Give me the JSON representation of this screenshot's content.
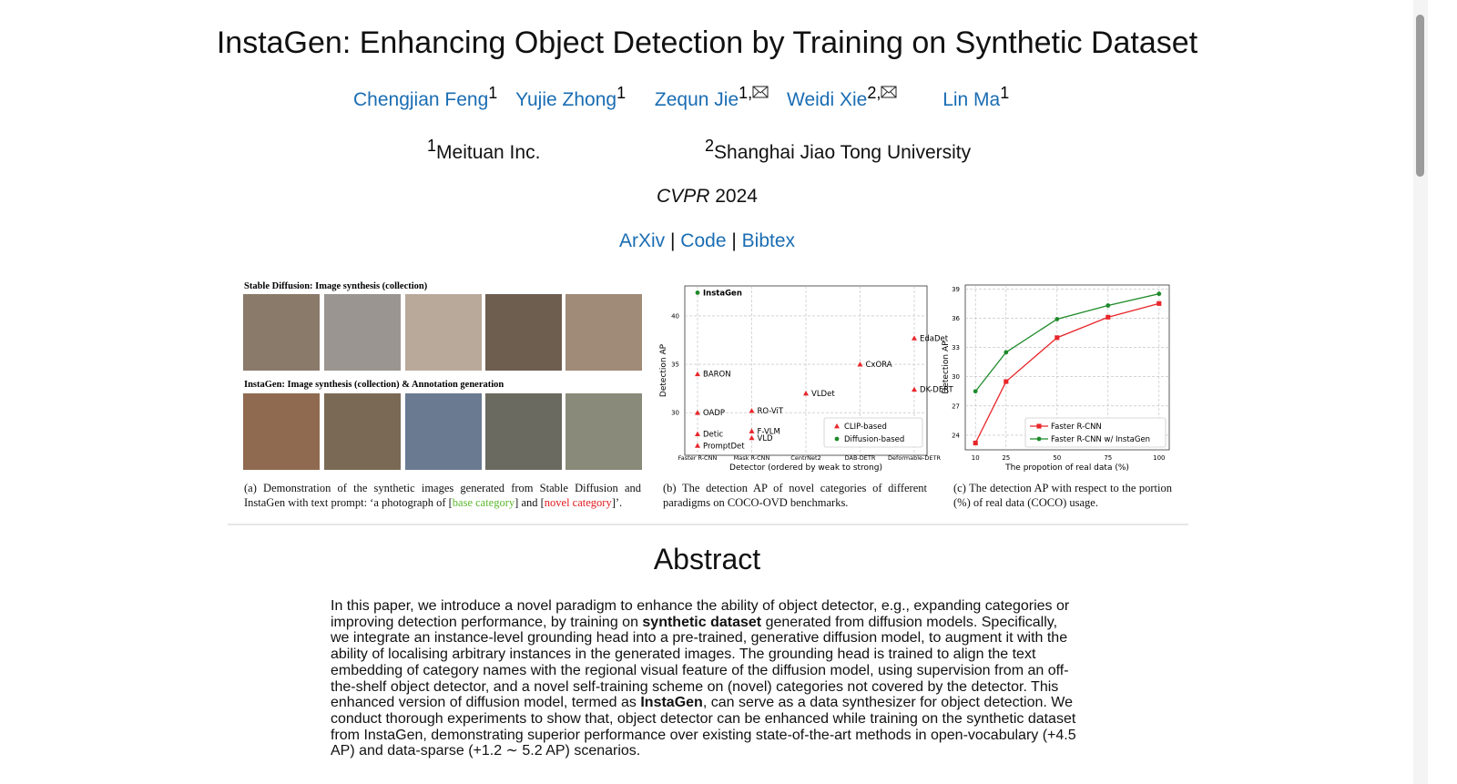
{
  "header": {
    "title": "InstaGen: Enhancing Object Detection by Training on Synthetic Dataset",
    "authors": [
      {
        "name": "Chengjian Feng",
        "mark": "1"
      },
      {
        "name": "Yujie Zhong",
        "mark": "1"
      },
      {
        "name": "Zequn Jie",
        "mark": "1,"
      },
      {
        "name": "Weidi Xie",
        "mark": "2,"
      },
      {
        "name": "Lin Ma",
        "mark": "1"
      }
    ],
    "affiliations": [
      {
        "index": "1",
        "name": "Meituan Inc."
      },
      {
        "index": "2",
        "name": "Shanghai Jiao Tong University"
      }
    ],
    "venue": "CVPR",
    "year": "2024",
    "links": [
      "ArXiv",
      "Code",
      "Bibtex"
    ],
    "separator": "|"
  },
  "figure_a": {
    "heading_1": "Stable Diffusion: Image synthesis (collection)",
    "heading_2": "InstaGen: Image synthesis (collection) & Annotation generation",
    "caption": [
      {
        "text": "(a) Demonstration of the synthetic images generated from Stable Diffusion and InstaGen with text prompt: ‘a photograph of ["
      },
      {
        "text": "base category",
        "color": "#5cb82e"
      },
      {
        "text": "] and ["
      },
      {
        "text": "novel category",
        "color": "#e0191e"
      },
      {
        "text": "]’."
      }
    ]
  },
  "chart_data": [
    {
      "type": "scatter",
      "caption": "(b) The detection AP of novel categories of different paradigms on COCO-OVD benchmarks.",
      "x_label": "Detector (ordered by weak to strong)",
      "y_label": "Detection AP",
      "categories": [
        "Faster R-CNN",
        "Mask R-CNN",
        "CentrNet2",
        "DAB-DETR",
        "Deformable-DETR"
      ],
      "ylim": [
        25.6,
        43.1
      ],
      "yticks": [
        30,
        35,
        40
      ],
      "grid": true,
      "legend": "lower right",
      "series": [
        {
          "name": "CLIP-based",
          "color": "#e8262a",
          "marker": "triangle",
          "points": [
            {
              "label": "BARON",
              "x": "Faster R-CNN",
              "y": 34.0
            },
            {
              "label": "OADP",
              "x": "Faster R-CNN",
              "y": 30.0
            },
            {
              "label": "Detic",
              "x": "Faster R-CNN",
              "y": 27.8
            },
            {
              "label": "PromptDet",
              "x": "Faster R-CNN",
              "y": 26.6
            },
            {
              "label": "RO-ViT",
              "x": "Mask R-CNN",
              "y": 30.2
            },
            {
              "label": "F-VLM",
              "x": "Mask R-CNN",
              "y": 28.1
            },
            {
              "label": "VLD",
              "x": "Mask R-CNN",
              "y": 27.4
            },
            {
              "label": "VLDet",
              "x": "CentrNet2",
              "y": 32.0
            },
            {
              "label": "CxORA",
              "x": "DAB-DETR",
              "y": 35.0
            },
            {
              "label": "EdaDet",
              "x": "Deformable-DETR",
              "y": 37.7
            },
            {
              "label": "DK-DERT",
              "x": "Deformable-DETR",
              "y": 32.4
            }
          ]
        },
        {
          "name": "Diffusion-based",
          "color": "#1e8a2a",
          "marker": "circle",
          "points": [
            {
              "label": "InstaGen",
              "x": "Faster R-CNN",
              "y": 42.4
            }
          ]
        }
      ]
    },
    {
      "type": "line",
      "caption": "(c) The detection AP with respect to the portion (%) of real data (COCO) usage.",
      "x_label": "The propotion of real data (%)",
      "y_label": "Detection AP",
      "x": [
        10,
        25,
        50,
        75,
        100
      ],
      "xlim": [
        5,
        105
      ],
      "xticks": [
        10,
        25,
        50,
        75,
        100
      ],
      "ylim": [
        22.5,
        39.4
      ],
      "yticks": [
        24,
        27,
        30,
        33,
        36,
        39
      ],
      "grid": true,
      "legend": "lower right",
      "series": [
        {
          "name": "Faster R-CNN",
          "color": "#e8262a",
          "marker": "square",
          "values": [
            23.2,
            29.5,
            34.0,
            36.1,
            37.5
          ]
        },
        {
          "name": "Faster R-CNN w/ InstaGen",
          "color": "#1e8a2a",
          "marker": "circle",
          "values": [
            28.5,
            32.5,
            35.9,
            37.3,
            38.5
          ]
        }
      ]
    }
  ],
  "abstract": {
    "heading": "Abstract",
    "segments": [
      {
        "text": "In this paper, we introduce a novel paradigm to enhance the ability of object detector, e.g., expanding categories or improving detection performance, by training on "
      },
      {
        "text": "synthetic dataset",
        "bold": true
      },
      {
        "text": " generated from diffusion models. Specifically, we integrate an instance-level grounding head into a pre-trained, generative diffusion model, to augment it with the ability of localising arbitrary instances in the generated images. The grounding head is trained to align the text embedding of category names with the regional visual feature of the diffusion model, using supervision from an off-the-shelf object detector, and a novel self-training scheme on (novel) categories not covered by the detector. This enhanced version of diffusion model, termed as "
      },
      {
        "text": "InstaGen",
        "bold": true
      },
      {
        "text": ", can serve as a data synthesizer for object detection. We conduct thorough experiments to show that, object detector can be enhanced while training on the synthetic dataset from InstaGen, demonstrating superior performance over existing state-of-the-art methods in open-vocabulary (+4.5 AP) and data-sparse (+1.2 ∼ 5.2 AP) scenarios."
      }
    ]
  }
}
